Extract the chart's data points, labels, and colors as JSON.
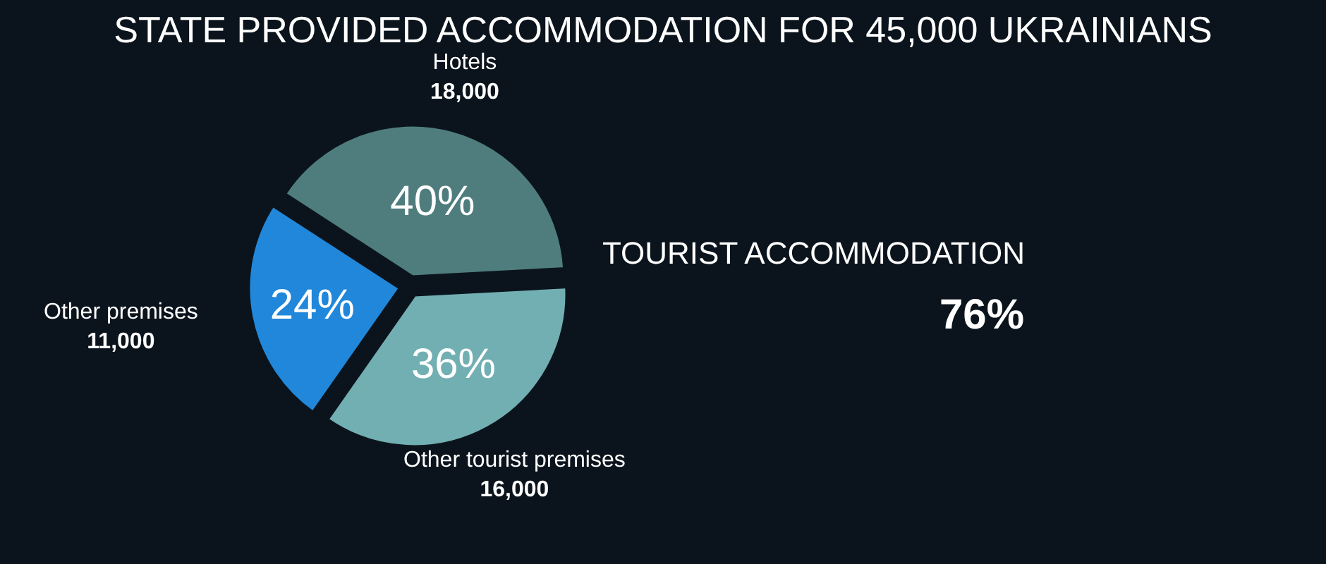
{
  "chart_data": {
    "type": "pie",
    "title": "STATE PROVIDED ACCOMMODATION FOR 45,000 UKRAINIANS",
    "categories": [
      "Hotels",
      "Other tourist premises",
      "Other premises"
    ],
    "values": [
      18000,
      16000,
      11000
    ],
    "value_labels": [
      "18,000",
      "16,000",
      "11,000"
    ],
    "colors": [
      "#4f7d7e",
      "#72afb3",
      "#2187da"
    ],
    "annotations": [
      "40%",
      "36%",
      "24%",
      "TOURIST ACCOMMODATION",
      "76%"
    ],
    "legend": false
  }
}
